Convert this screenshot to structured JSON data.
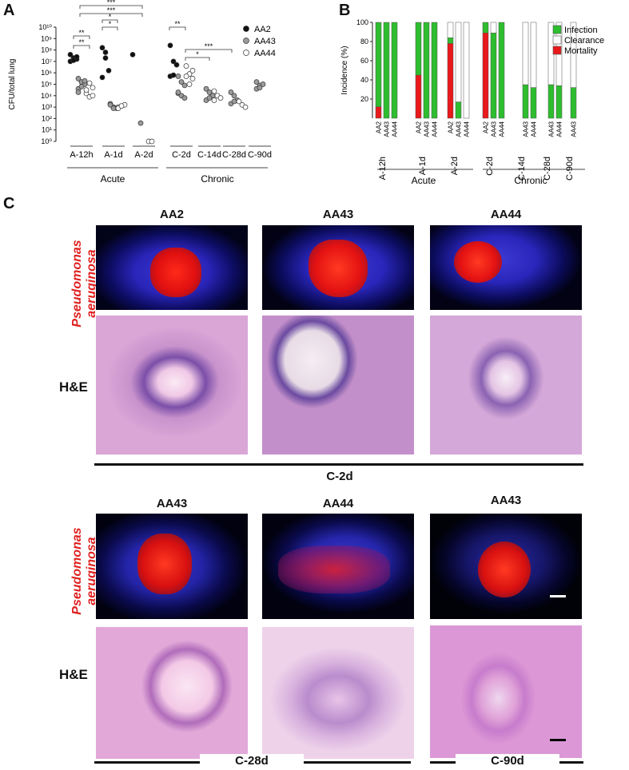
{
  "panels": {
    "a": "A",
    "b": "B",
    "c": "C"
  },
  "chart_a": {
    "type": "scatter",
    "ylabel": "CFU/total lung",
    "yticks": [
      "10⁰",
      "10¹",
      "10²",
      "10³",
      "10⁴",
      "10⁵",
      "10⁶",
      "10⁷",
      "10⁸",
      "10⁹",
      "10¹⁰"
    ],
    "legend": [
      {
        "name": "AA2",
        "fill": "#111111"
      },
      {
        "name": "AA43",
        "fill": "#9a9a9a"
      },
      {
        "name": "AA44",
        "fill": "#ffffff"
      }
    ],
    "xlabels": [
      "A-12h",
      "A-1d",
      "A-2d",
      "C-2d",
      "C-14d",
      "C-28d",
      "C-90d"
    ],
    "groups": [
      "Acute",
      "Chronic"
    ],
    "sig": [
      "**",
      "**",
      "*",
      "*",
      "***",
      "***",
      "**",
      "*",
      "***"
    ],
    "points_log10": {
      "A-12h": {
        "AA2": [
          7.6,
          7.3,
          7.2,
          7.0,
          7.1,
          7.4
        ],
        "AA43": [
          5.5,
          5.2,
          5.0,
          4.6,
          4.8,
          5.3,
          4.3
        ],
        "AA44": [
          4.2,
          3.9,
          4.7,
          4.5,
          5.1,
          4.0
        ]
      },
      "A-1d": {
        "AA2": [
          8.2,
          7.3,
          6.2,
          5.6,
          7.8
        ],
        "AA43": [
          3.3,
          3.0,
          2.9,
          3.2,
          2.9
        ],
        "AA44": [
          3.0,
          3.1,
          3.2,
          2.9,
          3.1
        ]
      },
      "A-2d": {
        "AA2": [
          7.6
        ],
        "AA43": [
          1.6
        ],
        "AA44": [
          0,
          0
        ]
      },
      "C-2d": {
        "AA2": [
          8.4,
          7.0,
          6.7,
          5.7,
          5.8
        ],
        "AA43": [
          5.7,
          5.2,
          4.9,
          4.2,
          4.0,
          3.8,
          4.3
        ],
        "AA44": [
          6.6,
          5.9,
          6.2,
          5.7,
          5.0,
          5.5
        ]
      },
      "C-14d": {
        "AA2": [],
        "AA43": [
          4.6,
          4.3,
          4.0,
          3.6,
          3.8
        ],
        "AA44": [
          4.4,
          4.0,
          3.8,
          3.6
        ]
      },
      "C-28d": {
        "AA2": [],
        "AA43": [
          4.3,
          4.0,
          3.6,
          3.3,
          3.5
        ],
        "AA44": [
          3.5,
          3.2,
          3.0
        ]
      },
      "C-90d": {
        "AA2": [],
        "AA43": [
          5.2,
          4.9,
          5.0,
          4.6,
          4.7
        ],
        "AA44": []
      }
    }
  },
  "chart_b": {
    "type": "bar",
    "ylabel": "Incidence (%)",
    "yticks": [
      "20",
      "40",
      "60",
      "80",
      "100"
    ],
    "legend": [
      {
        "name": "Infection",
        "color": "#2ebd2e"
      },
      {
        "name": "Clearance",
        "color": "#ffffff"
      },
      {
        "name": "Mortality",
        "color": "#e8191b"
      }
    ],
    "bar_labels": [
      "AA2",
      "AA43",
      "AA44"
    ],
    "timepoints": [
      "A-12h",
      "A-1d",
      "A-2d",
      "C-2d",
      "C-14d",
      "C-28d",
      "C-90d"
    ],
    "groups": [
      "Acute",
      "Chronic"
    ],
    "bars": [
      {
        "t": 0,
        "s": 0,
        "mortality": 12,
        "infection": 88,
        "clearance": 0
      },
      {
        "t": 0,
        "s": 1,
        "mortality": 0,
        "infection": 100,
        "clearance": 0
      },
      {
        "t": 0,
        "s": 2,
        "mortality": 0,
        "infection": 100,
        "clearance": 0
      },
      {
        "t": 1,
        "s": 0,
        "mortality": 45,
        "infection": 55,
        "clearance": 0
      },
      {
        "t": 1,
        "s": 1,
        "mortality": 0,
        "infection": 100,
        "clearance": 0
      },
      {
        "t": 1,
        "s": 2,
        "mortality": 0,
        "infection": 100,
        "clearance": 0
      },
      {
        "t": 2,
        "s": 0,
        "mortality": 78,
        "infection": 6,
        "clearance": 16
      },
      {
        "t": 2,
        "s": 1,
        "mortality": 0,
        "infection": 17,
        "clearance": 83
      },
      {
        "t": 2,
        "s": 2,
        "mortality": 0,
        "infection": 0,
        "clearance": 100
      },
      {
        "t": 3,
        "s": 0,
        "mortality": 89,
        "infection": 11,
        "clearance": 0
      },
      {
        "t": 3,
        "s": 1,
        "mortality": 0,
        "infection": 89,
        "clearance": 11
      },
      {
        "t": 3,
        "s": 2,
        "mortality": 0,
        "infection": 100,
        "clearance": 0
      },
      {
        "t": 4,
        "s": 1,
        "mortality": 0,
        "infection": 35,
        "clearance": 65
      },
      {
        "t": 4,
        "s": 2,
        "mortality": 0,
        "infection": 32,
        "clearance": 68
      },
      {
        "t": 5,
        "s": 1,
        "mortality": 0,
        "infection": 35,
        "clearance": 65
      },
      {
        "t": 5,
        "s": 2,
        "mortality": 0,
        "infection": 34,
        "clearance": 66
      },
      {
        "t": 6,
        "s": 1,
        "mortality": 0,
        "infection": 32,
        "clearance": 68
      }
    ]
  },
  "panel_c": {
    "top_titles": [
      "AA2",
      "AA43",
      "AA44"
    ],
    "bottom_titles": [
      "AA43",
      "AA44",
      "AA43"
    ],
    "row_fish": "Pseudomonas aeruginosa",
    "row_he": "H&E",
    "top_group": "C-2d",
    "bottom_groups": [
      "C-28d",
      "C-90d"
    ]
  }
}
